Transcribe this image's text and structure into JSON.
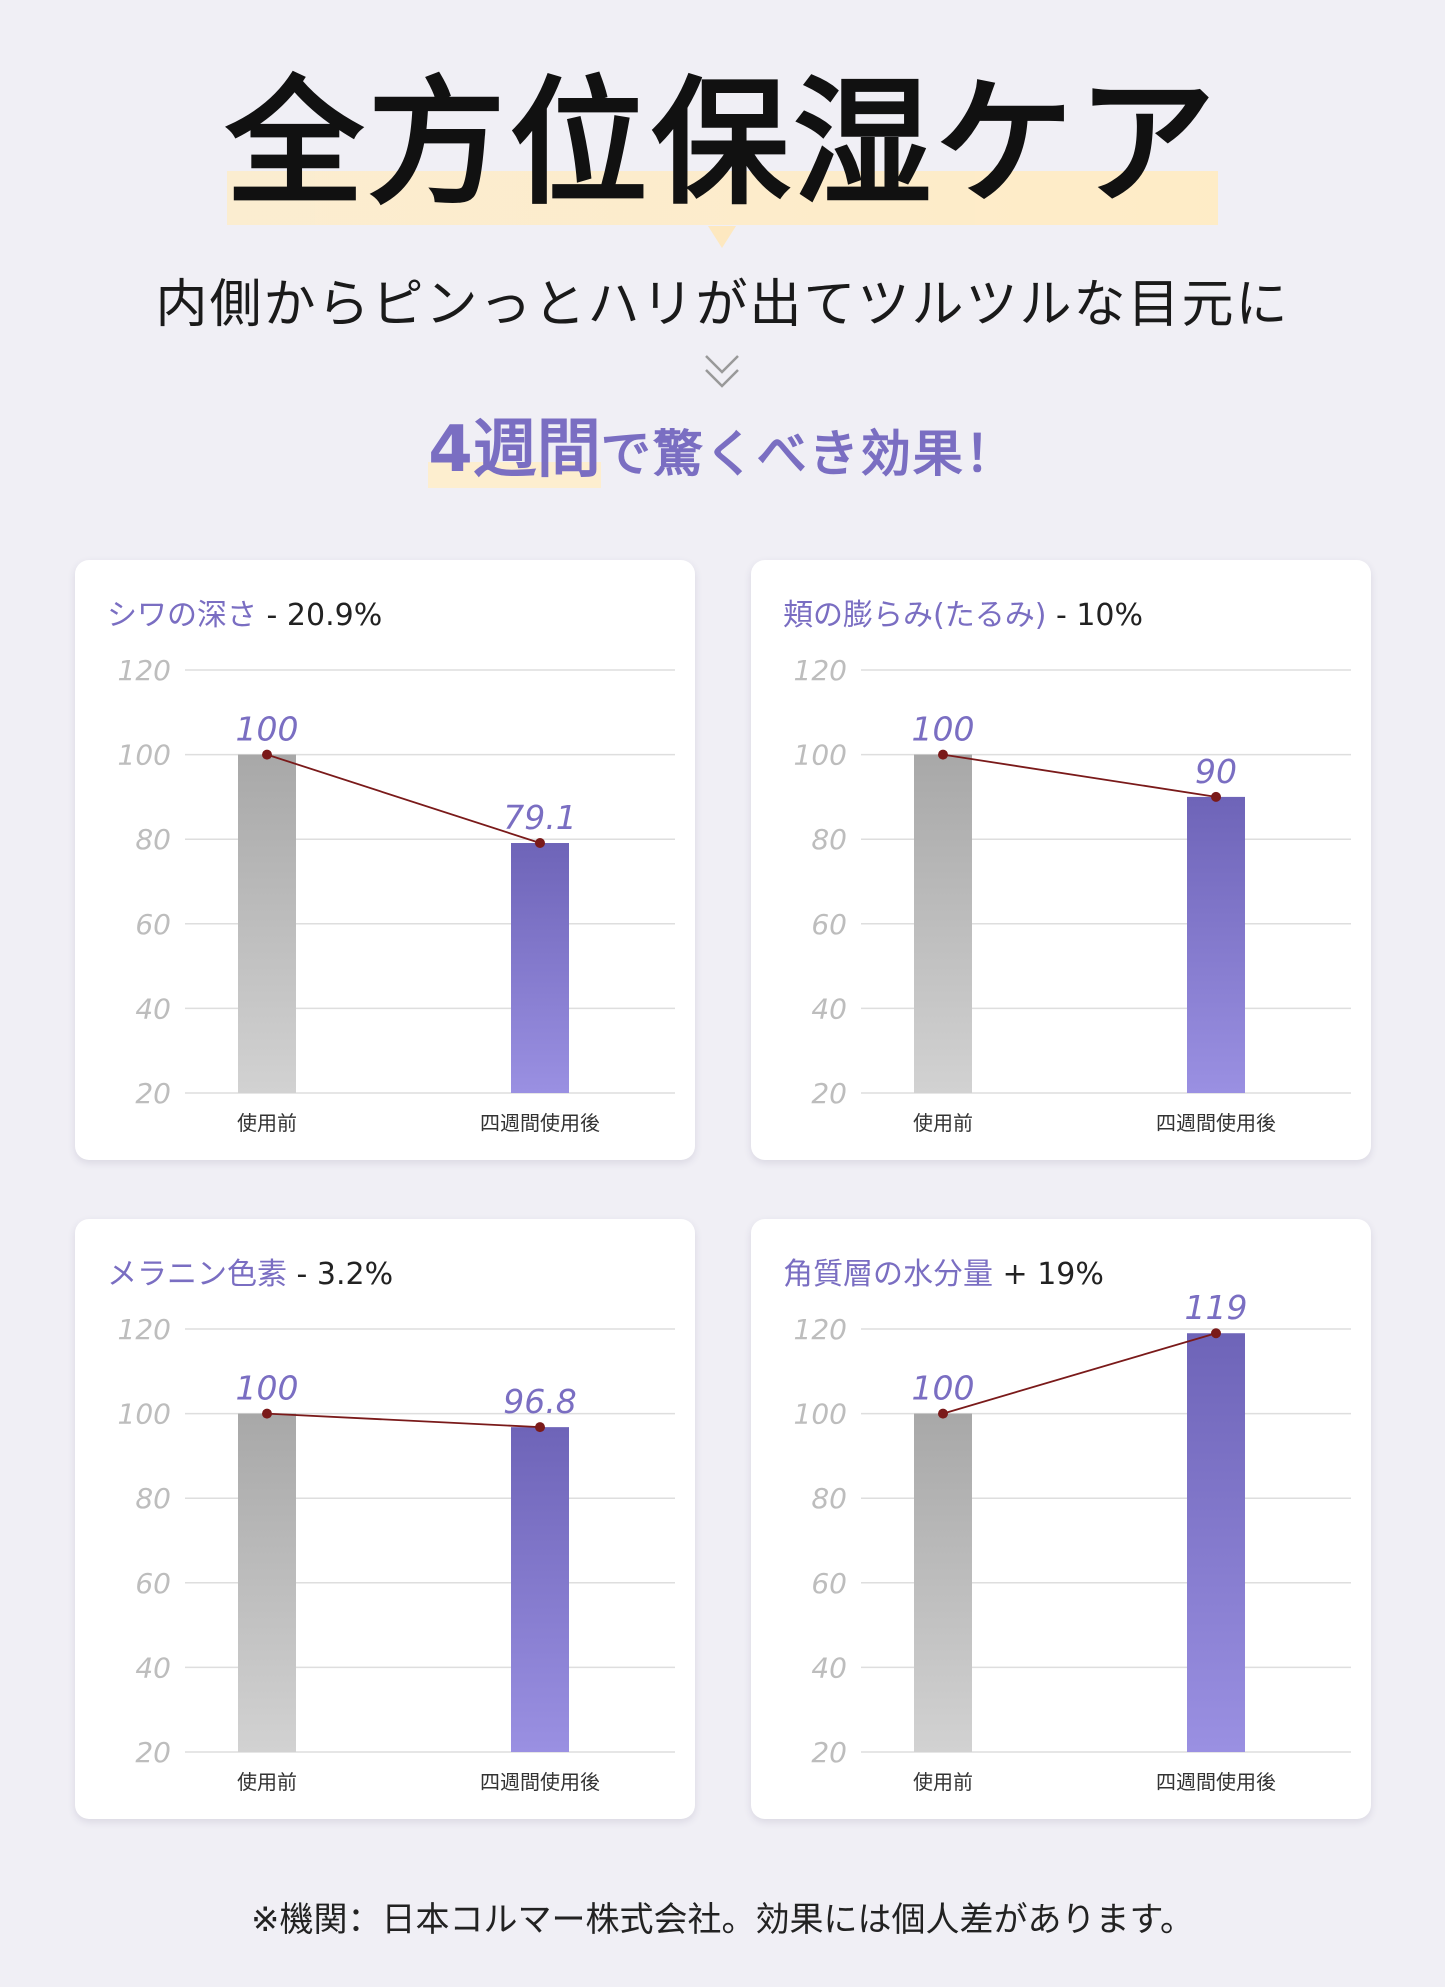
{
  "header": {
    "title": "全方位保湿ケア",
    "subtitle": "内側からピンっとハリが出てツルツルな目元に",
    "tagline_emphasis": "4週間",
    "tagline_rest": "で驚くべき効果！"
  },
  "colors": {
    "accent": "#7a6ec2",
    "bar_before_top": "#a8a8a8",
    "bar_before_bottom": "#d2d2d2",
    "bar_after_top": "#6e64b8",
    "bar_after_bottom": "#9a90e2",
    "line": "#7a1a1a",
    "highlight": "#fde8c0"
  },
  "chart_data": [
    {
      "type": "bar",
      "title": "シワの深さ",
      "delta": "- 20.9%",
      "categories": [
        "使用前",
        "四週間使用後"
      ],
      "values": [
        100,
        79.1
      ],
      "labels": [
        "100",
        "79.1"
      ],
      "ylim": [
        20,
        120
      ],
      "yticks": [
        "20",
        "40",
        "60",
        "80",
        "100",
        "120"
      ],
      "grid": true,
      "connector_line": true
    },
    {
      "type": "bar",
      "title": "頬の膨らみ(たるみ)",
      "delta": "- 10%",
      "categories": [
        "使用前",
        "四週間使用後"
      ],
      "values": [
        100,
        90
      ],
      "labels": [
        "100",
        "90"
      ],
      "ylim": [
        20,
        120
      ],
      "yticks": [
        "20",
        "40",
        "60",
        "80",
        "100",
        "120"
      ],
      "grid": true,
      "connector_line": true
    },
    {
      "type": "bar",
      "title": "メラニン色素",
      "delta": "- 3.2%",
      "categories": [
        "使用前",
        "四週間使用後"
      ],
      "values": [
        100,
        96.8
      ],
      "labels": [
        "100",
        "96.8"
      ],
      "ylim": [
        20,
        120
      ],
      "yticks": [
        "20",
        "40",
        "60",
        "80",
        "100",
        "120"
      ],
      "grid": true,
      "connector_line": true
    },
    {
      "type": "bar",
      "title": "角質層の水分量",
      "delta": "+ 19%",
      "categories": [
        "使用前",
        "四週間使用後"
      ],
      "values": [
        100,
        119
      ],
      "labels": [
        "100",
        "119"
      ],
      "ylim": [
        20,
        120
      ],
      "yticks": [
        "20",
        "40",
        "60",
        "80",
        "100",
        "120"
      ],
      "grid": true,
      "connector_line": true
    }
  ],
  "footer": {
    "note": "※機関：日本コルマー株式会社。効果には個人差があります。"
  }
}
